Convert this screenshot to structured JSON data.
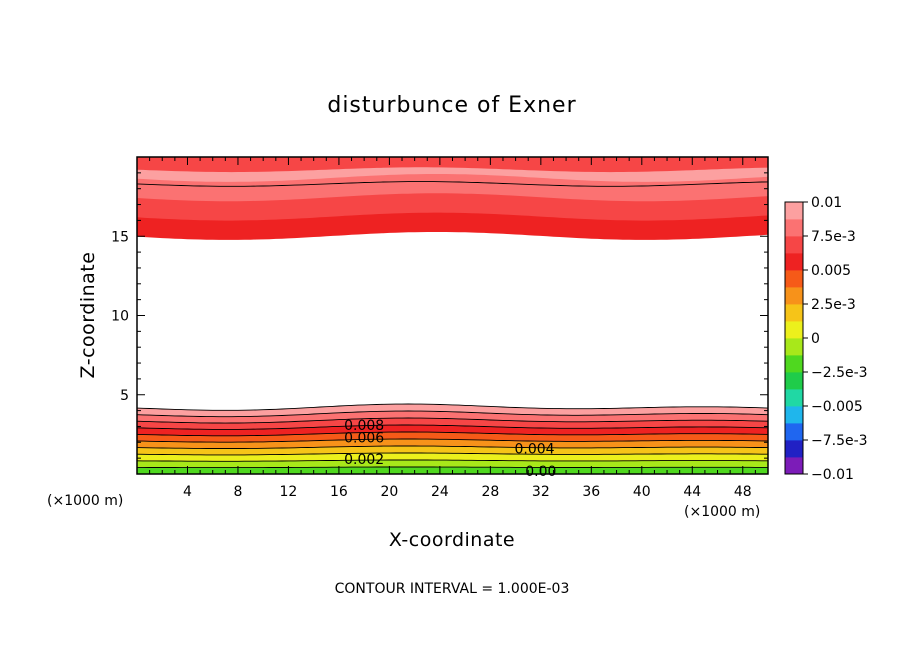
{
  "chart_data": {
    "type": "contour",
    "title": "disturbunce of Exner",
    "xlabel": "X-coordinate",
    "ylabel": "Z-coordinate",
    "x_unit": "(×1000 m)",
    "y_unit": "(×1000 m)",
    "xlim": [
      0,
      50
    ],
    "ylim": [
      0,
      20
    ],
    "x_ticks": [
      4,
      8,
      12,
      16,
      20,
      24,
      28,
      32,
      36,
      40,
      44,
      48
    ],
    "y_ticks": [
      5,
      10,
      15
    ],
    "contour_interval_text": "CONTOUR INTERVAL = 1.000E-03",
    "contour_labels": [
      {
        "text": "0.008",
        "x": 18.0,
        "z": 3.1
      },
      {
        "text": "0.006",
        "x": 18.0,
        "z": 2.3
      },
      {
        "text": "0.002",
        "x": 18.0,
        "z": 0.95
      },
      {
        "text": "0.004",
        "x": 31.5,
        "z": 1.6
      },
      {
        "text": "0.00",
        "x": 32.0,
        "z": 0.2
      }
    ],
    "colorbar": {
      "min": -0.01,
      "max": 0.01,
      "step": 0.00125,
      "tick_labels": [
        "0.01",
        "7.5e-3",
        "0.005",
        "2.5e-3",
        "0",
        "−2.5e-3",
        "−0.005",
        "−7.5e-3",
        "−0.01"
      ],
      "colors_low_to_high": [
        "#7c1cb8",
        "#2121c4",
        "#1f66f0",
        "#1fb6ec",
        "#20d8a4",
        "#1fcc4a",
        "#4fd81f",
        "#a8e81a",
        "#ecf01c",
        "#f6c418",
        "#f7921a",
        "#f65a18",
        "#ee2222",
        "#f64646",
        "#fb7272",
        "#fca0a0"
      ]
    },
    "field_structure": {
      "upper_band_z": [
        15.0,
        19.9
      ],
      "lower_band_z": [
        0.0,
        4.2
      ],
      "blank_region_note": ""
    }
  }
}
